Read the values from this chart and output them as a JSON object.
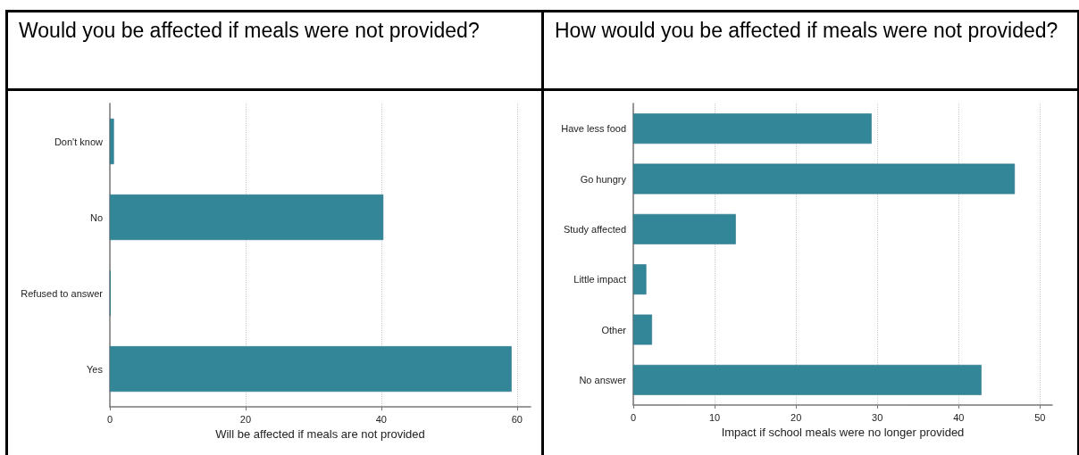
{
  "chart_data": [
    {
      "type": "bar",
      "orientation": "horizontal",
      "title": "Would you be affected if meals were not provided?",
      "xlabel": "Will be affected if meals are not provided",
      "categories": [
        "Don't know",
        "No",
        "Refused to answer",
        "Yes"
      ],
      "values": [
        0.6,
        40.3,
        0.1,
        59.2
      ],
      "color": "#338598",
      "xlim": [
        0,
        62
      ],
      "xticks": [
        0,
        20,
        40,
        60
      ],
      "grid": "x"
    },
    {
      "type": "bar",
      "orientation": "horizontal",
      "title": "How would you be affected if meals were not provided?",
      "xlabel": "Impact if school meals were no longer provided",
      "categories": [
        "Have less food",
        "Go hungry",
        "Study affected",
        "Little impact",
        "Other",
        "No answer"
      ],
      "values": [
        29.3,
        46.9,
        12.6,
        1.6,
        2.3,
        42.8
      ],
      "color": "#338598",
      "xlim": [
        0,
        51.5
      ],
      "xticks": [
        0,
        10,
        20,
        30,
        40,
        50
      ],
      "grid": "x"
    }
  ]
}
